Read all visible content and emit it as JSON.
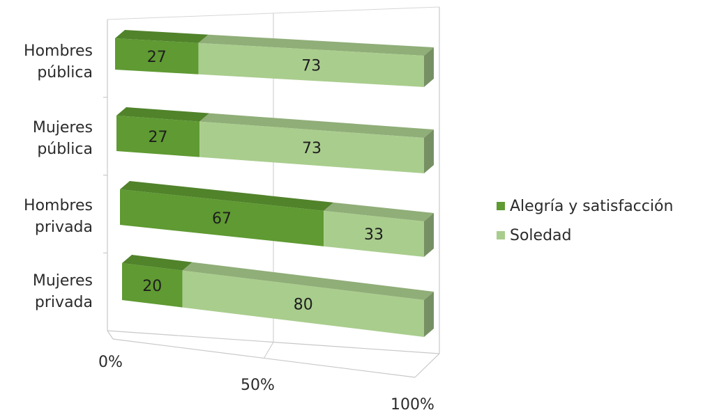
{
  "chart_data": {
    "type": "bar",
    "orientation": "horizontal",
    "stacked": "percent",
    "view": "3d",
    "categories": [
      "Hombres pública",
      "Mujeres pública",
      "Hombres privada",
      "Mujeres privada"
    ],
    "category_lines": [
      [
        "Hombres",
        "pública"
      ],
      [
        "Mujeres",
        "pública"
      ],
      [
        "Hombres",
        "privada"
      ],
      [
        "Mujeres",
        "privada"
      ]
    ],
    "series": [
      {
        "name": "Alegría y satisfacción",
        "values": [
          27,
          27,
          67,
          20
        ],
        "color": "#5f9a32"
      },
      {
        "name": "Soledad",
        "values": [
          73,
          73,
          33,
          80
        ],
        "color": "#a9cd8d"
      }
    ],
    "x_ticks": [
      "0%",
      "50%",
      "100%"
    ],
    "xlim": [
      0,
      100
    ],
    "title": "",
    "xlabel": "",
    "ylabel": "",
    "grid": true,
    "legend_position": "right"
  }
}
